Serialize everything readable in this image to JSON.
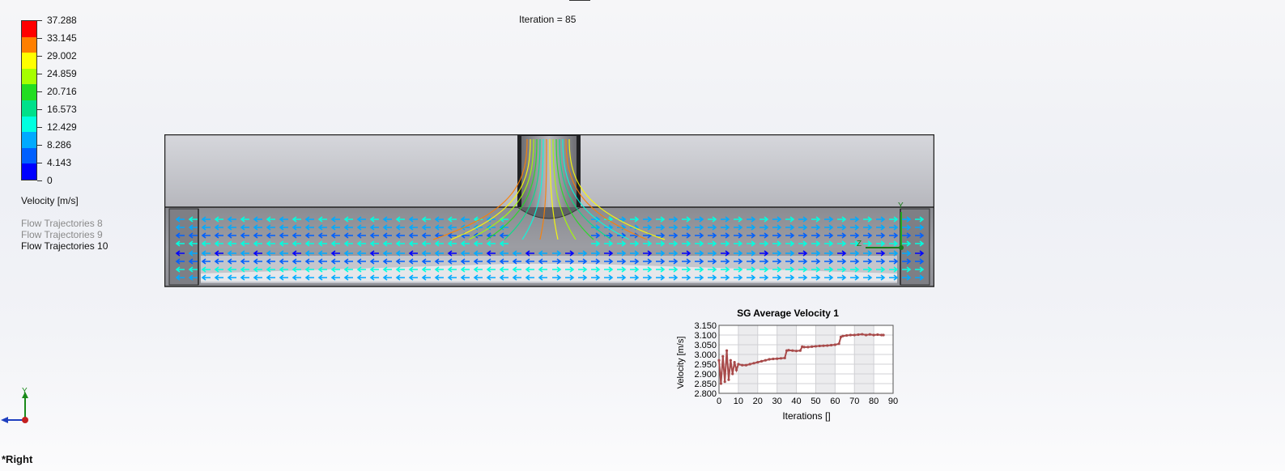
{
  "legend": {
    "ticks": [
      "37.288",
      "33.145",
      "29.002",
      "24.859",
      "20.716",
      "16.573",
      "12.429",
      "8.286",
      "4.143",
      "0"
    ],
    "unit": "Velocity [m/s]",
    "colors": [
      "#ff0000",
      "#ff7f00",
      "#ffff00",
      "#a6ff00",
      "#22dd22",
      "#00e08a",
      "#00ffe0",
      "#00aaff",
      "#0060ff",
      "#0000ff"
    ],
    "trajectories": [
      "Flow Trajectories 8",
      "Flow Trajectories 9",
      "Flow Trajectories 10"
    ]
  },
  "iteration": "Iteration = 85",
  "chart": {
    "title": "SG Average Velocity 1",
    "ylabel": "Velocity [m/s]",
    "xlabel": "Iterations []",
    "yticks": [
      "3.150",
      "3.100",
      "3.050",
      "3.000",
      "2.950",
      "2.900",
      "2.850",
      "2.800"
    ],
    "xticks": [
      "0",
      "10",
      "20",
      "30",
      "40",
      "50",
      "60",
      "70",
      "80",
      "90"
    ],
    "line_color": "#a84a4a"
  },
  "chart_data": {
    "type": "line",
    "title": "SG Average Velocity 1",
    "xlabel": "Iterations []",
    "ylabel": "Velocity [m/s]",
    "xlim": [
      0,
      90
    ],
    "ylim": [
      2.8,
      3.15
    ],
    "series": [
      {
        "x": [
          0,
          1,
          2,
          3,
          4,
          5,
          6,
          7,
          8,
          9,
          10,
          12,
          14,
          16,
          18,
          20,
          22,
          24,
          26,
          28,
          30,
          32,
          34,
          35,
          36,
          38,
          40,
          42,
          43,
          44,
          46,
          48,
          50,
          52,
          54,
          56,
          58,
          60,
          62,
          63,
          64,
          66,
          68,
          70,
          72,
          74,
          76,
          78,
          80,
          82,
          84,
          85
        ],
        "y": [
          2.97,
          2.85,
          2.99,
          2.86,
          3.02,
          2.87,
          2.97,
          2.9,
          2.96,
          2.92,
          2.95,
          2.945,
          2.945,
          2.95,
          2.955,
          2.96,
          2.965,
          2.97,
          2.975,
          2.977,
          2.978,
          2.98,
          2.982,
          3.02,
          3.022,
          3.02,
          3.018,
          3.02,
          3.04,
          3.038,
          3.038,
          3.04,
          3.042,
          3.044,
          3.045,
          3.046,
          3.048,
          3.05,
          3.055,
          3.09,
          3.095,
          3.098,
          3.1,
          3.1,
          3.102,
          3.104,
          3.1,
          3.103,
          3.1,
          3.102,
          3.1,
          3.1
        ]
      }
    ]
  },
  "triad": {
    "axis_label": "Y"
  },
  "model_triad": {
    "y_label": "Y",
    "z_label": "Z"
  },
  "view": "*Right"
}
